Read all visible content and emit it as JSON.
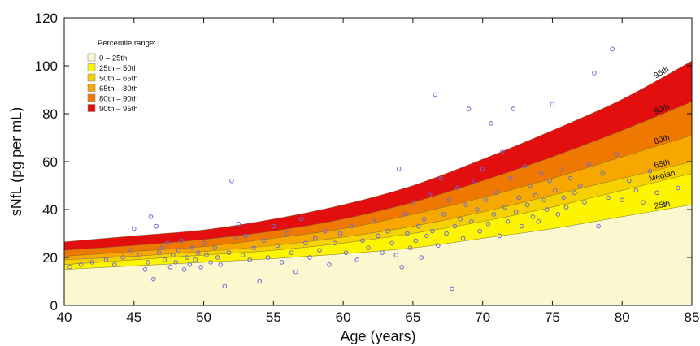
{
  "chart_data": {
    "type": "area",
    "xlabel": "Age (years)",
    "ylabel": "sNfL (pg per mL)",
    "xlim": [
      40,
      85
    ],
    "ylim": [
      0,
      120
    ],
    "x_ticks": [
      40,
      45,
      50,
      55,
      60,
      65,
      70,
      75,
      80,
      85
    ],
    "y_ticks": [
      0,
      20,
      40,
      60,
      80,
      100,
      120
    ],
    "grid": false,
    "legend": {
      "title": "Percentile range:",
      "placement": "top-left",
      "entries": [
        {
          "label": "0 – 25th",
          "color": "#fbf8cf"
        },
        {
          "label": "25th – 50th",
          "color": "#fdf500"
        },
        {
          "label": "50th – 65th",
          "color": "#f6d100"
        },
        {
          "label": "65th – 80th",
          "color": "#f6a800"
        },
        {
          "label": "80th – 90th",
          "color": "#ef7800"
        },
        {
          "label": "90th – 95th",
          "color": "#e30f0f"
        }
      ]
    },
    "x": [
      40,
      45,
      50,
      55,
      60,
      65,
      70,
      75,
      80,
      85
    ],
    "percentile_curves": [
      {
        "name": "25th",
        "values": [
          15,
          16.5,
          18,
          19.5,
          21.5,
          24,
          28,
          32,
          37,
          42
        ]
      },
      {
        "name": "Median",
        "values": [
          17,
          19,
          21,
          23,
          26,
          30,
          35,
          41,
          48,
          55
        ]
      },
      {
        "name": "65th",
        "values": [
          19,
          20.5,
          22.5,
          25,
          28.5,
          33,
          39,
          46,
          53,
          60
        ]
      },
      {
        "name": "80th",
        "values": [
          20.5,
          22.5,
          24.5,
          28,
          32,
          38,
          45,
          53,
          62,
          71
        ]
      },
      {
        "name": "90th",
        "values": [
          23,
          25,
          27.5,
          31,
          36,
          43,
          52,
          62,
          73,
          85
        ]
      },
      {
        "name": "95th",
        "values": [
          26.5,
          29,
          31.5,
          36,
          42,
          50,
          61,
          73,
          86,
          102
        ]
      }
    ],
    "scatter": {
      "color": "#6b6bd6",
      "points": [
        [
          40.4,
          16
        ],
        [
          41.2,
          17
        ],
        [
          42,
          18
        ],
        [
          43,
          19
        ],
        [
          43.6,
          17
        ],
        [
          44.2,
          20
        ],
        [
          44.8,
          23
        ],
        [
          45,
          32
        ],
        [
          45.4,
          21
        ],
        [
          45.8,
          15
        ],
        [
          46,
          18
        ],
        [
          46.2,
          37
        ],
        [
          46.4,
          11
        ],
        [
          46.6,
          33
        ],
        [
          46.8,
          22
        ],
        [
          47,
          24
        ],
        [
          47.2,
          19
        ],
        [
          47.4,
          26
        ],
        [
          47.6,
          16
        ],
        [
          47.8,
          21
        ],
        [
          48,
          18
        ],
        [
          48.2,
          23
        ],
        [
          48.4,
          27
        ],
        [
          48.6,
          15
        ],
        [
          48.8,
          20
        ],
        [
          49,
          17
        ],
        [
          49.2,
          24
        ],
        [
          49.4,
          19
        ],
        [
          49.6,
          22
        ],
        [
          49.8,
          16
        ],
        [
          50,
          26
        ],
        [
          50.2,
          21
        ],
        [
          50.5,
          18
        ],
        [
          50.8,
          24
        ],
        [
          51,
          20
        ],
        [
          51.2,
          17
        ],
        [
          51.5,
          8
        ],
        [
          51.8,
          22
        ],
        [
          52,
          52
        ],
        [
          52.2,
          28
        ],
        [
          52.5,
          34
        ],
        [
          52.8,
          21
        ],
        [
          53,
          29
        ],
        [
          53.3,
          19
        ],
        [
          53.6,
          24
        ],
        [
          54,
          10
        ],
        [
          54.3,
          27
        ],
        [
          54.6,
          20
        ],
        [
          55,
          33
        ],
        [
          55.3,
          25
        ],
        [
          55.6,
          18
        ],
        [
          56,
          30
        ],
        [
          56.3,
          22
        ],
        [
          56.6,
          14
        ],
        [
          57,
          36
        ],
        [
          57.3,
          26
        ],
        [
          57.6,
          20
        ],
        [
          58,
          28
        ],
        [
          58.3,
          23
        ],
        [
          58.7,
          31
        ],
        [
          59,
          17
        ],
        [
          59.4,
          26
        ],
        [
          59.8,
          30
        ],
        [
          60.2,
          22
        ],
        [
          60.6,
          33
        ],
        [
          61,
          19
        ],
        [
          61.4,
          27
        ],
        [
          61.8,
          24
        ],
        [
          62.2,
          35
        ],
        [
          62.5,
          29
        ],
        [
          62.8,
          22
        ],
        [
          63.2,
          31
        ],
        [
          63.5,
          26
        ],
        [
          63.8,
          21
        ],
        [
          64,
          57
        ],
        [
          64.2,
          16
        ],
        [
          64.4,
          38
        ],
        [
          64.6,
          30
        ],
        [
          64.8,
          24
        ],
        [
          65,
          43
        ],
        [
          65.2,
          27
        ],
        [
          65.4,
          33
        ],
        [
          65.6,
          20
        ],
        [
          65.8,
          36
        ],
        [
          66,
          29
        ],
        [
          66.2,
          46
        ],
        [
          66.4,
          31
        ],
        [
          66.6,
          88
        ],
        [
          66.8,
          25
        ],
        [
          67,
          53
        ],
        [
          67.2,
          38
        ],
        [
          67.4,
          30
        ],
        [
          67.6,
          44
        ],
        [
          67.8,
          7
        ],
        [
          68,
          33
        ],
        [
          68.2,
          49
        ],
        [
          68.4,
          36
        ],
        [
          68.6,
          28
        ],
        [
          68.8,
          42
        ],
        [
          69,
          82
        ],
        [
          69.2,
          35
        ],
        [
          69.4,
          52
        ],
        [
          69.6,
          40
        ],
        [
          69.8,
          31
        ],
        [
          70,
          57
        ],
        [
          70.2,
          44
        ],
        [
          70.4,
          34
        ],
        [
          70.6,
          76
        ],
        [
          70.8,
          38
        ],
        [
          71,
          47
        ],
        [
          71.2,
          29
        ],
        [
          71.4,
          64
        ],
        [
          71.6,
          41
        ],
        [
          71.8,
          35
        ],
        [
          72,
          53
        ],
        [
          72.2,
          82
        ],
        [
          72.4,
          39
        ],
        [
          72.6,
          45
        ],
        [
          72.8,
          33
        ],
        [
          73,
          58
        ],
        [
          73.2,
          42
        ],
        [
          73.4,
          50
        ],
        [
          73.6,
          37
        ],
        [
          73.8,
          46
        ],
        [
          74,
          35
        ],
        [
          74.2,
          55
        ],
        [
          74.4,
          44
        ],
        [
          74.6,
          40
        ],
        [
          74.8,
          52
        ],
        [
          75,
          84
        ],
        [
          75.2,
          48
        ],
        [
          75.4,
          38
        ],
        [
          75.6,
          57
        ],
        [
          75.8,
          45
        ],
        [
          76,
          41
        ],
        [
          76.3,
          53
        ],
        [
          76.6,
          47
        ],
        [
          77,
          50
        ],
        [
          77.3,
          43
        ],
        [
          77.6,
          59
        ],
        [
          78,
          97
        ],
        [
          78.3,
          33
        ],
        [
          78.6,
          55
        ],
        [
          79,
          45
        ],
        [
          79.3,
          107
        ],
        [
          79.6,
          63
        ],
        [
          80,
          44
        ],
        [
          80.5,
          52
        ],
        [
          81,
          48
        ],
        [
          81.5,
          43
        ],
        [
          82,
          56
        ],
        [
          82.5,
          47
        ],
        [
          83,
          42
        ],
        [
          84,
          49
        ]
      ]
    }
  }
}
